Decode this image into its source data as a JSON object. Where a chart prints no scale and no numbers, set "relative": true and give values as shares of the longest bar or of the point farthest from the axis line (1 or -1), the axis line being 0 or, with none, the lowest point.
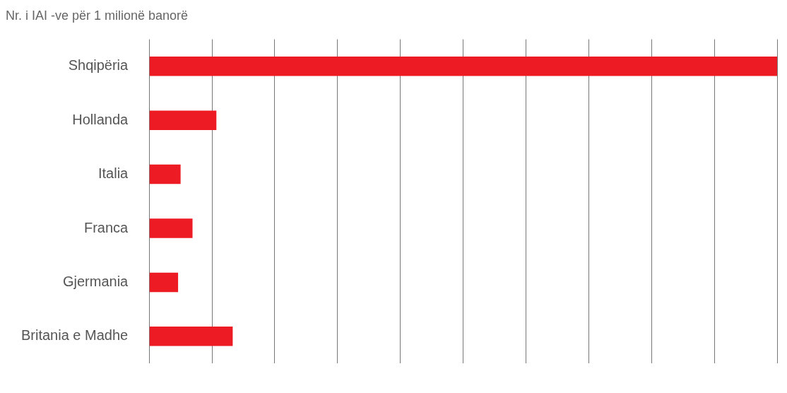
{
  "chart_data": {
    "type": "bar",
    "orientation": "horizontal",
    "relative": true,
    "title": "Nr. i IAI -ve për 1 milionë banorë",
    "categories": [
      "Shqipëria",
      "Hollanda",
      "Italia",
      "Franca",
      "Gjermania",
      "Britania e Madhe"
    ],
    "values": [
      1,
      0.107,
      0.05,
      0.069,
      0.046,
      0.133
    ],
    "color": "#ed1c24",
    "grid": "x",
    "legend": false
  }
}
